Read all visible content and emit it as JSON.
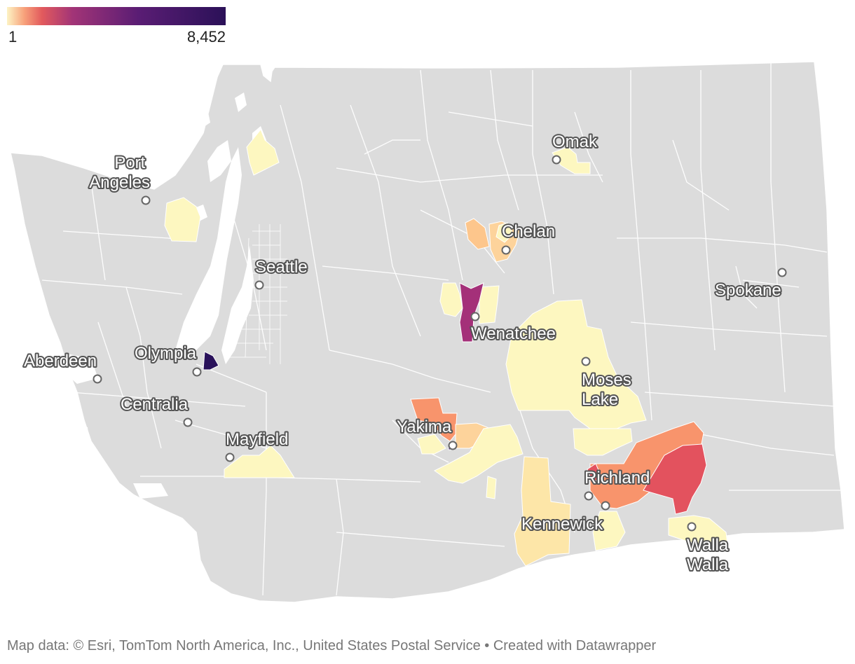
{
  "legend": {
    "min_label": "1",
    "max_label": "8,452",
    "gradient_colors": [
      "#fcfdbf",
      "#fc8961",
      "#b73779",
      "#51127c",
      "#000004"
    ],
    "bar_colors": [
      "#fdf3c4",
      "#f7a07a",
      "#e25a5d",
      "#a23477",
      "#4a1a6e",
      "#2b1158"
    ]
  },
  "map": {
    "land_color": "#dcdcdc",
    "border_color": "#ffffff",
    "water_color": "#ffffff",
    "cities": [
      {
        "id": "port-angeles",
        "lines": [
          "Port",
          "Angeles"
        ]
      },
      {
        "id": "omak",
        "lines": [
          "Omak"
        ]
      },
      {
        "id": "chelan",
        "lines": [
          "Chelan"
        ]
      },
      {
        "id": "seattle",
        "lines": [
          "Seattle"
        ]
      },
      {
        "id": "spokane",
        "lines": [
          "Spokane"
        ]
      },
      {
        "id": "wenatchee",
        "lines": [
          "Wenatchee"
        ]
      },
      {
        "id": "olympia",
        "lines": [
          "Olympia"
        ]
      },
      {
        "id": "aberdeen",
        "lines": [
          "Aberdeen"
        ]
      },
      {
        "id": "moses-lake",
        "lines": [
          "Moses",
          "Lake"
        ]
      },
      {
        "id": "centralia",
        "lines": [
          "Centralia"
        ]
      },
      {
        "id": "yakima",
        "lines": [
          "Yakima"
        ]
      },
      {
        "id": "mayfield",
        "lines": [
          "Mayfield"
        ]
      },
      {
        "id": "richland",
        "lines": [
          "Richland"
        ]
      },
      {
        "id": "kennewick",
        "lines": [
          "Kennewick"
        ]
      },
      {
        "id": "walla-walla",
        "lines": [
          "Walla",
          "Walla"
        ]
      }
    ]
  },
  "footer": {
    "text": "Map data: © Esri, TomTom North America, Inc., United States Postal Service  • Created with Datawrapper"
  }
}
